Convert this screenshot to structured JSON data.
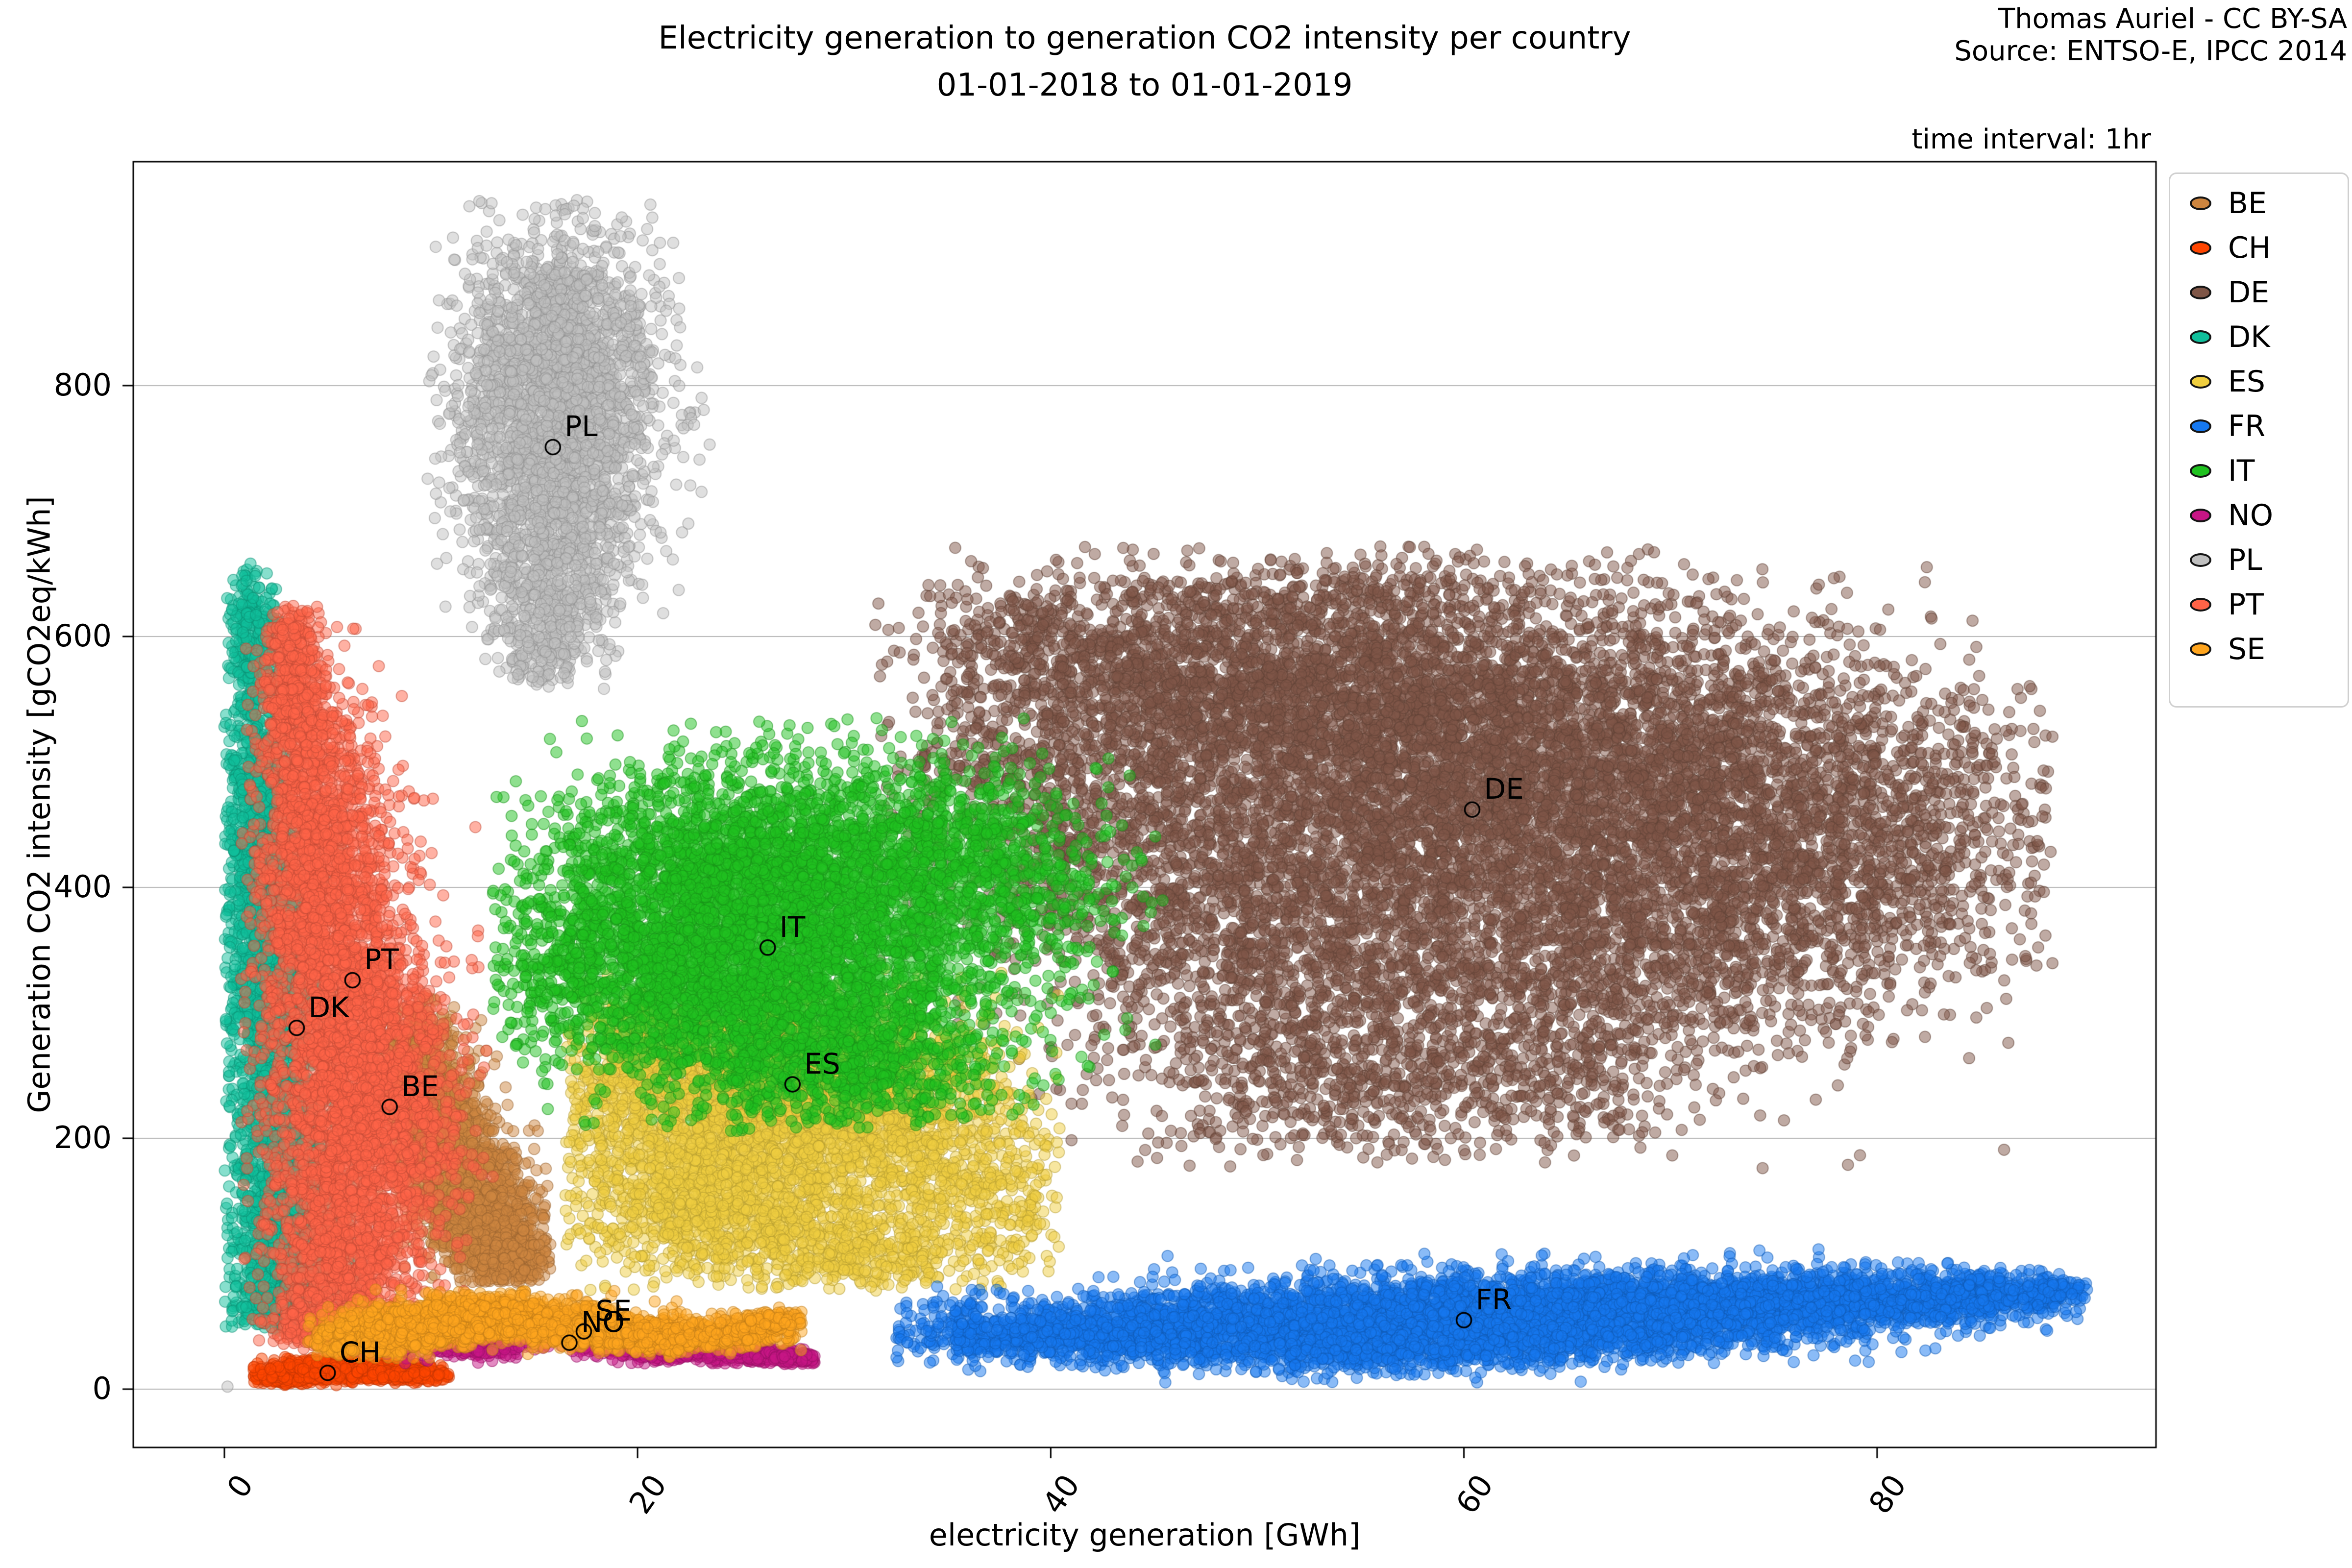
{
  "header": {
    "title": "Electricity generation to generation CO2 intensity per country",
    "subtitle": "01-01-2018 to 01-01-2019",
    "credit_line1": "Thomas Auriel - CC BY-SA",
    "credit_line2": "Source: ENTSO-E, IPCC 2014",
    "time_note": "time interval: 1hr"
  },
  "chart_data": {
    "type": "scatter",
    "title": "Electricity generation to generation CO2 intensity per country 01-01-2018 to 01-01-2019",
    "xlabel": "electricity generation [GWh]",
    "ylabel": "Generation CO2 intensity [gCO2eq/kWh]",
    "xlim": [
      -4.41,
      93.5
    ],
    "ylim": [
      -46.5,
      978.5
    ],
    "xticks": [
      0,
      20,
      40,
      60,
      80
    ],
    "yticks": [
      0,
      200,
      400,
      600,
      800
    ],
    "grid": true,
    "grid_color": "#b4b4b4",
    "legend_position": "right",
    "marker_alpha": 0.5,
    "marker_radius_px": 11.5,
    "legend": [
      {
        "label": "BE",
        "color": "#CD853F"
      },
      {
        "label": "CH",
        "color": "#FF4500"
      },
      {
        "label": "DE",
        "color": "#7F5647"
      },
      {
        "label": "DK",
        "color": "#10BF9B"
      },
      {
        "label": "ES",
        "color": "#EFCE3F"
      },
      {
        "label": "FR",
        "color": "#1578F0"
      },
      {
        "label": "IT",
        "color": "#1FC11F"
      },
      {
        "label": "NO",
        "color": "#C71585"
      },
      {
        "label": "PL",
        "color": "#C0C0C0"
      },
      {
        "label": "PT",
        "color": "#FF6347"
      },
      {
        "label": "SE",
        "color": "#FFA51E"
      }
    ],
    "series": [
      {
        "name": "BE",
        "color": "#CD853F",
        "label_xy": [
          8.0,
          225
        ],
        "x_range": [
          7,
          15.8
        ],
        "y_range": [
          85,
          315
        ],
        "components": [
          [
            9.3,
            255,
            0.9,
            28,
            500
          ],
          [
            10.5,
            200,
            1.3,
            32,
            700
          ],
          [
            12,
            150,
            1.4,
            28,
            700
          ],
          [
            13.3,
            115,
            1.1,
            20,
            400
          ],
          [
            14.2,
            100,
            0.8,
            12,
            150
          ]
        ]
      },
      {
        "name": "CH",
        "color": "#FF4500",
        "label_xy": [
          5.0,
          13
        ],
        "x_range": [
          1.4,
          10.9
        ],
        "y_range": [
          3,
          26
        ],
        "components": [
          [
            2.8,
            9,
            0.9,
            2.5,
            250
          ],
          [
            4.5,
            14,
            1.3,
            4,
            400
          ],
          [
            6,
            17,
            1.2,
            4,
            350
          ],
          [
            7.8,
            14,
            1.2,
            3.5,
            300
          ],
          [
            9.3,
            11,
            0.8,
            2.5,
            150
          ]
        ]
      },
      {
        "name": "DE",
        "color": "#7F5647",
        "label_xy": [
          60.4,
          462
        ],
        "x_range": [
          31.5,
          88.6
        ],
        "y_range": [
          172,
          672
        ],
        "components": [
          [
            52,
            560,
            7,
            45,
            1600
          ],
          [
            62,
            540,
            8,
            50,
            1600
          ],
          [
            72,
            500,
            7,
            55,
            1300
          ],
          [
            55,
            460,
            8,
            55,
            1500
          ],
          [
            65,
            430,
            8,
            55,
            1500
          ],
          [
            47,
            390,
            6,
            55,
            1000
          ],
          [
            57,
            330,
            7,
            50,
            900
          ],
          [
            67,
            330,
            6,
            45,
            700
          ],
          [
            75,
            390,
            5,
            55,
            700
          ],
          [
            82,
            440,
            3.5,
            55,
            450
          ],
          [
            52,
            250,
            5,
            35,
            450
          ],
          [
            62,
            240,
            5,
            30,
            350
          ],
          [
            45,
            550,
            5,
            40,
            600
          ],
          [
            40,
            600,
            4,
            25,
            300
          ],
          [
            55,
            630,
            6,
            22,
            300
          ],
          [
            38,
            480,
            3.5,
            50,
            350
          ]
        ]
      },
      {
        "name": "DK",
        "color": "#10BF9B",
        "label_xy": [
          3.5,
          288
        ],
        "x_range": [
          0,
          6.5
        ],
        "y_range": [
          45,
          665
        ],
        "components": [
          [
            1.3,
            600,
            0.55,
            30,
            250
          ],
          [
            1.6,
            480,
            0.8,
            60,
            600
          ],
          [
            2.0,
            360,
            1.1,
            70,
            800
          ],
          [
            2.6,
            230,
            1.5,
            75,
            900
          ],
          [
            3.2,
            120,
            1.7,
            45,
            800
          ],
          [
            3.0,
            70,
            1.2,
            15,
            300
          ]
        ]
      },
      {
        "name": "ES",
        "color": "#EFCE3F",
        "label_xy": [
          27.5,
          243
        ],
        "x_range": [
          16.5,
          40.5
        ],
        "y_range": [
          78,
          335
        ],
        "components": [
          [
            25,
            245,
            4,
            40,
            1400
          ],
          [
            29,
            210,
            4,
            40,
            1000
          ],
          [
            22,
            160,
            3.5,
            32,
            800
          ],
          [
            27,
            130,
            3.5,
            25,
            500
          ],
          [
            33,
            230,
            3.5,
            38,
            600
          ],
          [
            37,
            150,
            2.5,
            30,
            300
          ],
          [
            31,
            105,
            3,
            15,
            250
          ],
          [
            20,
            260,
            2,
            30,
            300
          ]
        ]
      },
      {
        "name": "FR",
        "color": "#1578F0",
        "label_xy": [
          60.0,
          55
        ],
        "x_range": [
          32.5,
          90.2
        ],
        "y_range": [
          4,
          112
        ],
        "components": [
          [
            46,
            50,
            4,
            14,
            900
          ],
          [
            54,
            52,
            5,
            16,
            1300
          ],
          [
            62,
            60,
            5,
            16,
            1400
          ],
          [
            70,
            66,
            5,
            14,
            1200
          ],
          [
            78,
            70,
            4,
            12,
            900
          ],
          [
            85,
            74,
            2.5,
            10,
            400
          ],
          [
            40,
            40,
            3,
            10,
            350
          ],
          [
            57,
            28,
            6,
            8,
            350
          ],
          [
            68,
            40,
            5,
            9,
            300
          ],
          [
            36,
            50,
            2,
            12,
            200
          ],
          [
            88,
            80,
            1.5,
            6,
            120
          ]
        ]
      },
      {
        "name": "IT",
        "color": "#1FC11F",
        "label_xy": [
          26.3,
          352
        ],
        "x_range": [
          13,
          46.5
        ],
        "y_range": [
          205,
          535
        ],
        "components": [
          [
            25,
            420,
            4.5,
            45,
            1500
          ],
          [
            28,
            370,
            5,
            50,
            1500
          ],
          [
            23,
            320,
            4,
            40,
            1200
          ],
          [
            30,
            300,
            4.5,
            40,
            900
          ],
          [
            34,
            430,
            4,
            40,
            700
          ],
          [
            19,
            380,
            2.5,
            45,
            400
          ],
          [
            38,
            400,
            3,
            45,
            350
          ],
          [
            30,
            250,
            4,
            22,
            400
          ],
          [
            16,
            330,
            1.8,
            40,
            200
          ]
        ]
      },
      {
        "name": "NO",
        "color": "#C71585",
        "label_xy": [
          16.7,
          37
        ],
        "x_range": [
          4.5,
          28.6
        ],
        "y_range": [
          20,
          62
        ],
        "components": [
          [
            7.5,
            44,
            1.6,
            6,
            350
          ],
          [
            10,
            40,
            1.8,
            6,
            350
          ],
          [
            12.5,
            36,
            1.2,
            5,
            200
          ],
          [
            20,
            34,
            1.6,
            4.5,
            300
          ],
          [
            23,
            30,
            1.6,
            4,
            300
          ],
          [
            26,
            27,
            1.3,
            3.5,
            200
          ],
          [
            27.8,
            25,
            0.6,
            2.5,
            80
          ]
        ]
      },
      {
        "name": "PL",
        "color": "#C0C0C0",
        "label_xy": [
          15.9,
          751
        ],
        "x_range": [
          9.8,
          23.6
        ],
        "y_range": [
          558,
          948
        ],
        "components": [
          [
            16.3,
            820,
            2.3,
            55,
            1800
          ],
          [
            15.6,
            730,
            2.5,
            50,
            900
          ],
          [
            16,
            660,
            2,
            40,
            450
          ],
          [
            15.6,
            612,
            1.3,
            25,
            180
          ],
          [
            15.3,
            580,
            0.8,
            12,
            60
          ]
        ]
      },
      {
        "name": "PT",
        "color": "#FF6347",
        "label_xy": [
          6.2,
          326
        ],
        "x_range": [
          0.8,
          13.5
        ],
        "y_range": [
          32,
          625
        ],
        "components": [
          [
            3.3,
            560,
            0.8,
            40,
            500
          ],
          [
            4.5,
            450,
            1.5,
            60,
            900
          ],
          [
            5.5,
            350,
            2.0,
            65,
            1200
          ],
          [
            6.5,
            250,
            2.3,
            55,
            1300
          ],
          [
            6.5,
            160,
            2.2,
            45,
            900
          ],
          [
            5.5,
            90,
            1.8,
            28,
            500
          ],
          [
            4.5,
            50,
            1.2,
            12,
            200
          ]
        ]
      },
      {
        "name": "SE",
        "color": "#FFA51E",
        "label_xy": [
          17.4,
          46
        ],
        "x_range": [
          4,
          28
        ],
        "y_range": [
          24,
          80
        ],
        "components": [
          [
            7,
            42,
            1.8,
            8,
            400
          ],
          [
            10,
            52,
            2,
            9,
            500
          ],
          [
            13,
            60,
            2,
            8,
            500
          ],
          [
            16,
            52,
            2.2,
            8,
            500
          ],
          [
            19,
            44,
            2,
            7,
            400
          ],
          [
            22.5,
            42,
            1.8,
            6,
            300
          ],
          [
            25.5,
            48,
            1.2,
            6,
            200
          ],
          [
            27,
            55,
            0.7,
            4,
            80
          ]
        ]
      }
    ],
    "outlier_points": [
      {
        "series": "PL",
        "color": "#C0C0C0",
        "x": 0.15,
        "y": 2
      }
    ]
  },
  "axes": {
    "xlabel": "electricity generation [GWh]",
    "ylabel": "Generation CO2 intensity [gCO2eq/kWh]"
  }
}
